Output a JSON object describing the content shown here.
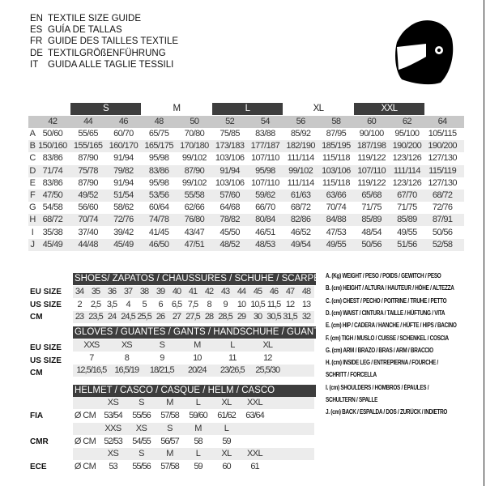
{
  "titles": [
    {
      "code": "EN",
      "text": "TEXTILE SIZE GUIDE"
    },
    {
      "code": "ES",
      "text": "GUÍA DE TALLAS"
    },
    {
      "code": "FR",
      "text": "GUIDE DES TAILLES TEXTILE"
    },
    {
      "code": "DE",
      "text": "TEXTILGRÖßENFÜHRUNG"
    },
    {
      "code": "IT",
      "text": "GUIDA ALLE TAGLIE TESSILI"
    }
  ],
  "icon": "helmet-icon",
  "colors": {
    "header_dark": "#3d3d3d",
    "header_gray": "#c8c8c8",
    "row_shade": "#ececec"
  },
  "textile": {
    "size_groups": [
      "S",
      "M",
      "L",
      "XL",
      "XXL"
    ],
    "columns": [
      "42",
      "44",
      "46",
      "48",
      "50",
      "52",
      "54",
      "56",
      "58",
      "60",
      "62",
      "64"
    ],
    "rows": [
      {
        "label": "A",
        "values": [
          "50/60",
          "55/65",
          "60/70",
          "65/75",
          "70/80",
          "75/85",
          "83/88",
          "85/92",
          "87/95",
          "90/100",
          "95/100",
          "105/115"
        ]
      },
      {
        "label": "B",
        "values": [
          "150/160",
          "155/165",
          "160/170",
          "165/175",
          "170/180",
          "173/183",
          "177/187",
          "182/190",
          "185/195",
          "187/198",
          "190/200",
          "190/200"
        ]
      },
      {
        "label": "C",
        "values": [
          "83/86",
          "87/90",
          "91/94",
          "95/98",
          "99/102",
          "103/106",
          "107/110",
          "111/114",
          "115/118",
          "119/122",
          "123/126",
          "127/130"
        ]
      },
      {
        "label": "D",
        "values": [
          "71/74",
          "75/78",
          "79/82",
          "83/86",
          "87/90",
          "91/94",
          "95/98",
          "99/102",
          "103/106",
          "107/110",
          "111/114",
          "115/119"
        ]
      },
      {
        "label": "E",
        "values": [
          "83/86",
          "87/90",
          "91/94",
          "95/98",
          "99/102",
          "103/106",
          "107/110",
          "111/114",
          "115/118",
          "119/122",
          "123/126",
          "127/130"
        ]
      },
      {
        "label": "F",
        "values": [
          "47/50",
          "49/52",
          "51/54",
          "53/56",
          "55/58",
          "57/60",
          "59/62",
          "61/63",
          "63/66",
          "65/68",
          "67/70",
          "68/72"
        ]
      },
      {
        "label": "G",
        "values": [
          "54/58",
          "56/60",
          "58/62",
          "60/64",
          "62/66",
          "64/68",
          "66/70",
          "68/72",
          "70/74",
          "71/75",
          "71/75",
          "72/76"
        ]
      },
      {
        "label": "H",
        "values": [
          "68/72",
          "70/74",
          "72/76",
          "74/78",
          "76/80",
          "78/82",
          "80/84",
          "82/86",
          "84/88",
          "85/89",
          "85/89",
          "87/91"
        ]
      },
      {
        "label": "I",
        "values": [
          "35/38",
          "37/40",
          "39/42",
          "41/45",
          "43/47",
          "45/50",
          "46/51",
          "46/52",
          "47/53",
          "48/54",
          "49/55",
          "50/56"
        ]
      },
      {
        "label": "J",
        "values": [
          "45/49",
          "44/48",
          "45/49",
          "46/50",
          "47/51",
          "48/52",
          "48/53",
          "49/54",
          "49/55",
          "50/56",
          "51/56",
          "52/58"
        ]
      }
    ]
  },
  "shoes": {
    "title": "SHOES/ ZAPATOS / CHAUSSURES / SCHUHE / SCARPE",
    "rows": [
      {
        "label": "EU SIZE",
        "values": [
          "34",
          "35",
          "36",
          "37",
          "38",
          "39",
          "40",
          "41",
          "42",
          "43",
          "44",
          "45",
          "46",
          "47",
          "48"
        ]
      },
      {
        "label": "US SIZE",
        "values": [
          "2",
          "2,5",
          "3,5",
          "4",
          "5",
          "6",
          "6,5",
          "7,5",
          "8",
          "9",
          "10",
          "10,5",
          "11,5",
          "12",
          "13"
        ]
      },
      {
        "label": "CM",
        "values": [
          "23",
          "23,5",
          "24",
          "24,5",
          "25,5",
          "26",
          "27",
          "27,5",
          "28",
          "28,5",
          "29",
          "30",
          "30,5",
          "31,5",
          "32"
        ]
      }
    ]
  },
  "gloves": {
    "title": "GLOVES / GUANTES / GANTS / HANDSCHUHE / GUANTI",
    "rows": [
      {
        "label": "EU SIZE",
        "values": [
          "XXS",
          "XS",
          "S",
          "M",
          "L",
          "XL"
        ]
      },
      {
        "label": "US SIZE",
        "values": [
          "7",
          "8",
          "9",
          "10",
          "11",
          "12"
        ]
      },
      {
        "label": "CM",
        "values": [
          "12,5/16,5",
          "16,5/19",
          "18/21,5",
          "20/24",
          "23/26,5",
          "25,5/30"
        ]
      }
    ]
  },
  "helmet": {
    "title": "HELMET / CASCO / CASQUE / HELM / CASCO",
    "groups": [
      {
        "label": "FIA",
        "unit": "Ø CM",
        "sizes": [
          "XS",
          "S",
          "M",
          "L",
          "XL",
          "XXL"
        ],
        "values": [
          "53/54",
          "55/56",
          "57/58",
          "59/60",
          "61/62",
          "63/64"
        ]
      },
      {
        "label": "CMR",
        "unit": "Ø CM",
        "sizes": [
          "XXS",
          "XS",
          "S",
          "M",
          "L"
        ],
        "values": [
          "52/53",
          "54/55",
          "56/57",
          "58",
          "59"
        ]
      },
      {
        "label": "ECE",
        "unit": "Ø CM",
        "sizes": [
          "XS",
          "S",
          "M",
          "L",
          "XL",
          "XXL"
        ],
        "values": [
          "53",
          "55/56",
          "57/58",
          "59",
          "60",
          "61"
        ]
      }
    ]
  },
  "legend": [
    "A. (Kg) WEIGHT / PESO / POIDS / GEWITCH / PESO",
    "B. (cm) HEIGHT / ALTURA / HAUTEUR / HÖHE / ALTEZZA",
    "C. (cm) CHEST / PECHO / POITRINE / TRUHE / PETTO",
    "D. (cm) WAIST / CINTURA / TAILLE / HÜFTUNG / VITA",
    "E. (cm) HIP / CADERA / HANCHE / HÜFTE / HIPS /  BACINO",
    "F.  (cm) TIGH / MUSLO / CUISSE / SCHENKEL / COSCIA",
    "G. (cm) ARM  / BRAZO / BRAS / ARM / BRACCIO",
    "H. (cm) INSIDE LEG / ENTREPIERNA / FOURCHE /",
    "SCHRITT / FORCELLA",
    "I.  (cm) SHOULDERS / HOMBROS / ÉPAULES /",
    "SCHULTERN / SPALLE",
    "J. (cm) BACK / ESPALDA / DOS / ZURÜCK / INDIETRO"
  ]
}
